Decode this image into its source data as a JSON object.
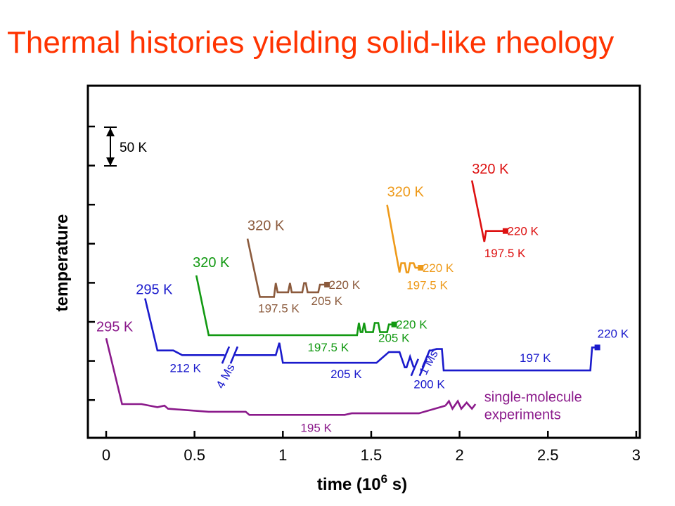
{
  "title": "Thermal histories yielding solid-like rheology",
  "chart_data": {
    "type": "line",
    "xlabel": "time (10",
    "xlabel_sup": "6",
    "xlabel_tail": " s)",
    "ylabel": "temperature",
    "xlim": [
      0,
      3
    ],
    "x_ticks": [
      "0",
      "0.5",
      "1",
      "1.5",
      "2",
      "2.5",
      "3"
    ],
    "scale_bar": "50 K",
    "y_tick_count": 8,
    "series": [
      {
        "color": "#8b1a8b",
        "points": [
          [
            0.0,
            295
          ],
          [
            0.09,
            252
          ],
          [
            0.2,
            252
          ],
          [
            0.29,
            250
          ],
          [
            0.33,
            251
          ],
          [
            0.35,
            249
          ],
          [
            0.58,
            247
          ],
          [
            0.79,
            247
          ],
          [
            0.81,
            245
          ],
          [
            1.35,
            245
          ],
          [
            1.39,
            246
          ],
          [
            1.77,
            246
          ],
          [
            1.92,
            251
          ]
        ],
        "zigzag": [
          [
            1.92,
            251
          ],
          [
            1.94,
            254
          ],
          [
            1.96,
            249
          ],
          [
            1.99,
            254
          ],
          [
            2.01,
            249
          ],
          [
            2.04,
            253
          ],
          [
            2.07,
            249
          ],
          [
            2.09,
            252
          ]
        ],
        "labels": [
          {
            "text": "295 K",
            "x": 0.0,
            "y": 295,
            "dx": -14,
            "dy": -10,
            "size": "big"
          },
          {
            "text": "195 K",
            "x": 1.1,
            "y": 245,
            "dx": 0,
            "dy": 24,
            "size": "small"
          },
          {
            "text": "single-molecule",
            "x": 2.14,
            "y": 255,
            "dx": 0,
            "dy": 3,
            "size": "big"
          },
          {
            "text": "experiments",
            "x": 2.14,
            "y": 255,
            "dx": 0,
            "dy": 28,
            "size": "big"
          }
        ]
      },
      {
        "color": "#1a1acc",
        "points": [
          [
            0.22,
            321
          ],
          [
            0.29,
            287
          ],
          [
            0.38,
            287
          ],
          [
            0.43,
            284
          ],
          [
            0.67,
            284
          ]
        ],
        "points_2": [
          [
            0.73,
            284
          ],
          [
            0.96,
            284
          ],
          [
            0.98,
            292
          ],
          [
            1.0,
            279
          ],
          [
            1.53,
            279
          ],
          [
            1.6,
            286
          ],
          [
            1.66,
            286
          ],
          [
            1.69,
            276
          ],
          [
            1.7,
            276
          ],
          [
            1.72,
            283
          ],
          [
            1.74,
            276
          ]
        ],
        "points_3": [
          [
            1.79,
            276
          ],
          [
            1.83,
            287
          ],
          [
            1.84,
            287
          ],
          [
            1.87,
            288
          ],
          [
            1.9,
            288
          ],
          [
            1.91,
            274
          ],
          [
            2.74,
            274
          ],
          [
            2.75,
            289
          ],
          [
            2.78,
            289
          ]
        ],
        "breaks": [
          [
            0.7,
            284
          ],
          [
            1.77,
            276
          ]
        ],
        "labels": [
          {
            "text": "295 K",
            "x": 0.2,
            "y": 321,
            "dx": -8,
            "dy": -6,
            "size": "big"
          },
          {
            "text": "212 K",
            "x": 0.36,
            "y": 284,
            "dx": 0,
            "dy": 24,
            "size": "small"
          },
          {
            "text": "205 K",
            "x": 1.27,
            "y": 279,
            "dx": 0,
            "dy": 22,
            "size": "small"
          },
          {
            "text": "200 K",
            "x": 1.74,
            "y": 276,
            "dx": 0,
            "dy": 30,
            "size": "small"
          },
          {
            "text": "197 K",
            "x": 2.34,
            "y": 274,
            "dx": 0,
            "dy": -12,
            "size": "small"
          },
          {
            "text": "220 K",
            "x": 2.78,
            "y": 289,
            "dx": 0,
            "dy": -14,
            "size": "small"
          }
        ],
        "rotated_labels": [
          {
            "text": "4 Ms",
            "x": 0.66,
            "y": 279,
            "angle": -62
          },
          {
            "text": "1 Ms",
            "x": 1.81,
            "y": 288,
            "angle": -62
          }
        ]
      },
      {
        "color": "#129912",
        "points": [
          [
            0.51,
            336
          ],
          [
            0.58,
            297
          ],
          [
            1.42,
            297
          ],
          [
            1.43,
            305
          ],
          [
            1.44,
            299
          ],
          [
            1.45,
            299
          ],
          [
            1.46,
            305
          ],
          [
            1.47,
            299
          ],
          [
            1.51,
            299
          ],
          [
            1.52,
            305
          ],
          [
            1.54,
            305
          ],
          [
            1.55,
            299
          ],
          [
            1.59,
            299
          ],
          [
            1.6,
            304
          ],
          [
            1.63,
            304
          ]
        ],
        "labels": [
          {
            "text": "320 K",
            "x": 0.49,
            "y": 336,
            "dx": 0,
            "dy": -12,
            "size": "big"
          },
          {
            "text": "197.5 K",
            "x": 1.14,
            "y": 297,
            "dx": 0,
            "dy": 23,
            "size": "small"
          },
          {
            "text": "205 K",
            "x": 1.54,
            "y": 299,
            "dx": 0,
            "dy": 14,
            "size": "small"
          },
          {
            "text": "220 K",
            "x": 1.64,
            "y": 304,
            "dx": 0,
            "dy": 6,
            "size": "small"
          }
        ]
      },
      {
        "color": "#8b5a3c",
        "points": [
          [
            0.8,
            360
          ],
          [
            0.87,
            322
          ],
          [
            0.95,
            322
          ],
          [
            0.96,
            331
          ],
          [
            0.97,
            325
          ],
          [
            1.03,
            325
          ],
          [
            1.04,
            331
          ],
          [
            1.05,
            325
          ],
          [
            1.11,
            325
          ],
          [
            1.12,
            331
          ],
          [
            1.13,
            331
          ],
          [
            1.14,
            325
          ],
          [
            1.2,
            325
          ],
          [
            1.21,
            330
          ],
          [
            1.25,
            330
          ]
        ],
        "labels": [
          {
            "text": "320 K",
            "x": 0.8,
            "y": 360,
            "dx": 0,
            "dy": -12,
            "size": "big"
          },
          {
            "text": "197.5 K",
            "x": 0.86,
            "y": 322,
            "dx": 0,
            "dy": 22,
            "size": "small"
          },
          {
            "text": "205 K",
            "x": 1.16,
            "y": 325,
            "dx": 0,
            "dy": 18,
            "size": "small"
          },
          {
            "text": "220 K",
            "x": 1.26,
            "y": 330,
            "dx": 0,
            "dy": 6,
            "size": "small"
          }
        ]
      },
      {
        "color": "#ee9a1a",
        "points": [
          [
            1.59,
            382
          ],
          [
            1.66,
            338
          ],
          [
            1.67,
            344
          ],
          [
            1.69,
            344
          ],
          [
            1.7,
            338
          ],
          [
            1.71,
            338
          ],
          [
            1.72,
            344
          ],
          [
            1.74,
            344
          ],
          [
            1.75,
            341
          ],
          [
            1.78,
            341
          ]
        ],
        "labels": [
          {
            "text": "320 K",
            "x": 1.59,
            "y": 382,
            "dx": 0,
            "dy": -12,
            "size": "big"
          },
          {
            "text": "197.5 K",
            "x": 1.7,
            "y": 338,
            "dx": 0,
            "dy": 24,
            "size": "small"
          },
          {
            "text": "220 K",
            "x": 1.79,
            "y": 341,
            "dx": 0,
            "dy": 6,
            "size": "small"
          }
        ]
      },
      {
        "color": "#dd1111",
        "points": [
          [
            2.07,
            398
          ],
          [
            2.14,
            358
          ],
          [
            2.15,
            365
          ],
          [
            2.18,
            365
          ],
          [
            2.22,
            365
          ],
          [
            2.26,
            365
          ]
        ],
        "labels": [
          {
            "text": "320 K",
            "x": 2.07,
            "y": 398,
            "dx": 0,
            "dy": -10,
            "size": "big"
          },
          {
            "text": "197.5 K",
            "x": 2.14,
            "y": 358,
            "dx": 0,
            "dy": 22,
            "size": "small"
          },
          {
            "text": "220 K",
            "x": 2.27,
            "y": 365,
            "dx": 0,
            "dy": 6,
            "size": "small"
          }
        ]
      }
    ]
  }
}
